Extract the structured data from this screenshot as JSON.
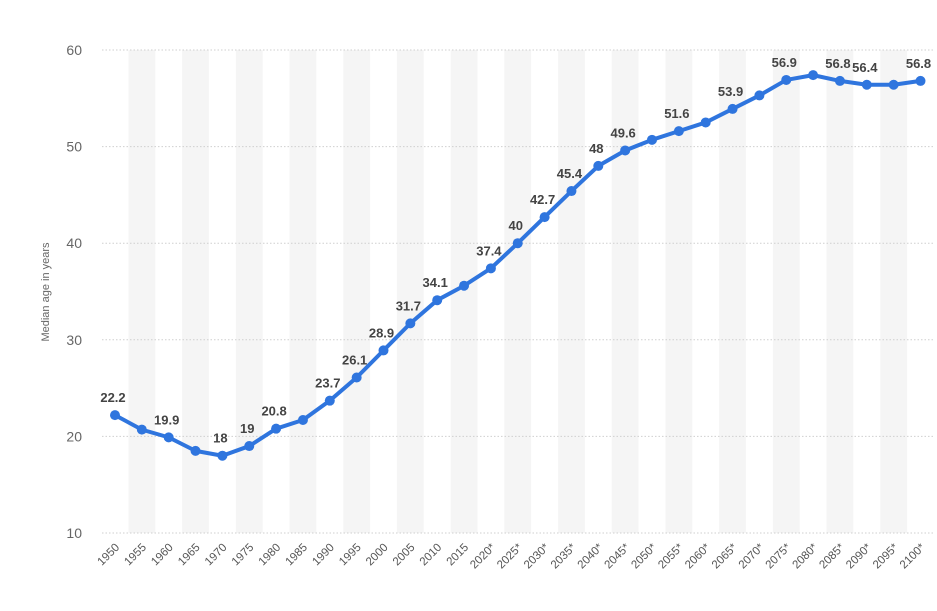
{
  "chart_data": {
    "type": "line",
    "title": "",
    "xlabel": "",
    "ylabel": "Median age in years",
    "ylim": [
      10,
      60
    ],
    "yticks": [
      10,
      20,
      30,
      40,
      50,
      60
    ],
    "grid": true,
    "legend": "none",
    "color": "#2f75de",
    "categories": [
      "1950",
      "1955",
      "1960",
      "1965",
      "1970",
      "1975",
      "1980",
      "1985",
      "1990",
      "1995",
      "2000",
      "2005",
      "2010",
      "2015",
      "2020*",
      "2025*",
      "2030*",
      "2035*",
      "2040*",
      "2045*",
      "2050*",
      "2055*",
      "2060*",
      "2065*",
      "2070*",
      "2075*",
      "2080*",
      "2085*",
      "2090*",
      "2095*",
      "2100*"
    ],
    "values": [
      22.2,
      20.7,
      19.9,
      18.5,
      18,
      19,
      20.8,
      21.7,
      23.7,
      26.1,
      28.9,
      31.7,
      34.1,
      35.6,
      37.4,
      40,
      42.7,
      45.4,
      48,
      49.6,
      50.7,
      51.6,
      52.5,
      53.9,
      55.3,
      56.9,
      57.4,
      56.8,
      56.4,
      56.4,
      56.8
    ],
    "data_labels": [
      "22.2",
      null,
      "19.9",
      null,
      "18",
      "19",
      "20.8",
      null,
      "23.7",
      "26.1",
      "28.9",
      "31.7",
      "34.1",
      null,
      "37.4",
      "40",
      "42.7",
      "45.4",
      "48",
      "49.6",
      null,
      "51.6",
      null,
      "53.9",
      null,
      "56.9",
      null,
      "56.8",
      "56.4",
      null,
      "56.8"
    ]
  }
}
